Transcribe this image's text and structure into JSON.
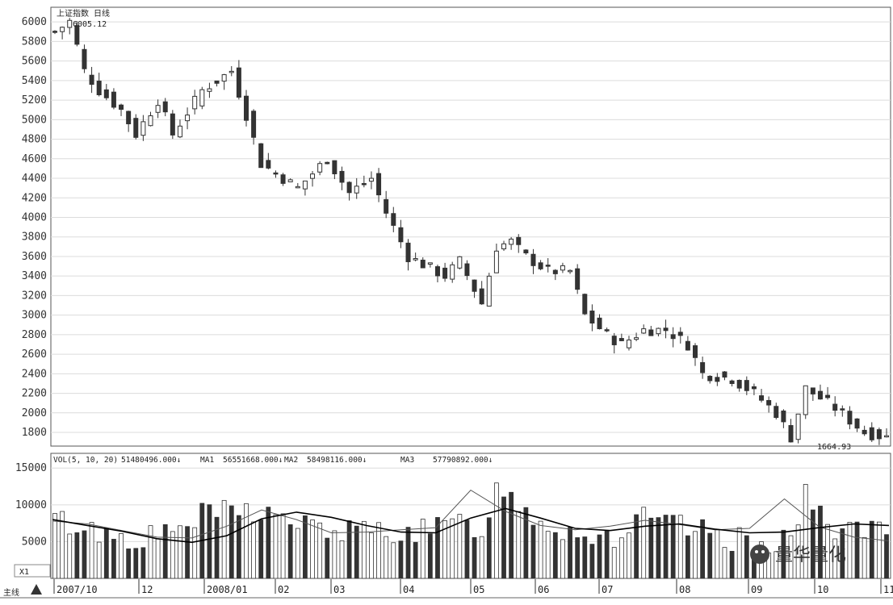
{
  "chart_data": [
    {
      "type": "candlestick",
      "title": "上证指数 日线",
      "ylim": [
        1660,
        6150
      ],
      "yticks": [
        "6000",
        "5800",
        "5600",
        "5400",
        "5200",
        "5000",
        "4800",
        "4600",
        "4400",
        "4200",
        "4000",
        "3800",
        "3600",
        "3400",
        "3200",
        "3000",
        "2800",
        "2600",
        "2400",
        "2200",
        "2000",
        "1800"
      ],
      "ytick_values": [
        6000,
        5800,
        5600,
        5400,
        5200,
        5000,
        4800,
        4600,
        4400,
        4200,
        4000,
        3800,
        3600,
        3400,
        3200,
        3000,
        2800,
        2600,
        2400,
        2200,
        2000,
        1800
      ],
      "high_label": "6005.12",
      "low_label": "1664.93",
      "grid": true,
      "series_anchors_close": [
        [
          0,
          5900
        ],
        [
          2,
          6005
        ],
        [
          4,
          5500
        ],
        [
          6,
          5300
        ],
        [
          9,
          5100
        ],
        [
          11,
          4850
        ],
        [
          14,
          5200
        ],
        [
          16,
          4850
        ],
        [
          20,
          5300
        ],
        [
          24,
          5500
        ],
        [
          26,
          5050
        ],
        [
          28,
          4550
        ],
        [
          33,
          4300
        ],
        [
          37,
          4600
        ],
        [
          40,
          4250
        ],
        [
          43,
          4400
        ],
        [
          45,
          4050
        ],
        [
          48,
          3600
        ],
        [
          53,
          3400
        ],
        [
          55,
          3550
        ],
        [
          58,
          3120
        ],
        [
          60,
          3700
        ],
        [
          62,
          3750
        ],
        [
          64,
          3600
        ],
        [
          67,
          3450
        ],
        [
          70,
          3450
        ],
        [
          72,
          3000
        ],
        [
          75,
          2800
        ],
        [
          77,
          2700
        ],
        [
          80,
          2850
        ],
        [
          83,
          2850
        ],
        [
          86,
          2700
        ],
        [
          88,
          2400
        ],
        [
          92,
          2350
        ],
        [
          95,
          2200
        ],
        [
          98,
          2000
        ],
        [
          100,
          1750
        ],
        [
          102,
          2250
        ],
        [
          106,
          2050
        ],
        [
          110,
          1800
        ],
        [
          113,
          1750
        ]
      ]
    },
    {
      "type": "bar",
      "title": "VOL(5, 10, 20)",
      "ylim": [
        0,
        17000
      ],
      "yticks": [
        "15000",
        "10000",
        "5000"
      ],
      "ytick_values": [
        15000,
        10000,
        5000
      ],
      "header": [
        "VOL(5, 10, 20)",
        "51480496.000↓",
        "MA1",
        "56551668.000↓",
        "MA2",
        "58498116.000↓",
        "MA3",
        "57790892.000↓"
      ],
      "series": [
        {
          "name": "MA1",
          "values": [
            7800,
            7400,
            6500,
            5600,
            5500,
            7100,
            9300,
            8000,
            6200,
            6300,
            6600,
            6900,
            12000,
            9100,
            7200,
            6600,
            7100,
            7900,
            7300,
            6600,
            6800,
            10800,
            7000,
            5600,
            5100
          ]
        },
        {
          "name": "MA3",
          "values": [
            8000,
            7200,
            6400,
            5400,
            4900,
            5800,
            8100,
            9000,
            8300,
            7200,
            6300,
            6200,
            8200,
            9500,
            8200,
            6800,
            6500,
            7100,
            7400,
            6700,
            6200,
            6300,
            6900,
            7400,
            7200
          ]
        }
      ],
      "volume_anchors": [
        [
          0,
          8000
        ],
        [
          4,
          6800
        ],
        [
          10,
          5500
        ],
        [
          15,
          5800
        ],
        [
          20,
          8500
        ],
        [
          25,
          9500
        ],
        [
          30,
          8500
        ],
        [
          35,
          6800
        ],
        [
          40,
          6300
        ],
        [
          45,
          6500
        ],
        [
          50,
          6300
        ],
        [
          55,
          7500
        ],
        [
          58,
          6800
        ],
        [
          60,
          12000
        ],
        [
          62,
          11500
        ],
        [
          65,
          8500
        ],
        [
          68,
          7000
        ],
        [
          72,
          6000
        ],
        [
          76,
          5600
        ],
        [
          80,
          8000
        ],
        [
          84,
          7200
        ],
        [
          88,
          6200
        ],
        [
          92,
          5300
        ],
        [
          96,
          4800
        ],
        [
          100,
          5800
        ],
        [
          102,
          11000
        ],
        [
          105,
          7200
        ],
        [
          110,
          6500
        ],
        [
          113,
          5700
        ]
      ]
    }
  ],
  "x_axis": {
    "labels": [
      "2007/10",
      "12",
      "2008/01",
      "02",
      "03",
      "04",
      "05",
      "06",
      "07",
      "08",
      "09",
      "10",
      "11"
    ]
  },
  "corner": {
    "zoom": "X1",
    "mark": "主线"
  },
  "watermark": "量华量化"
}
